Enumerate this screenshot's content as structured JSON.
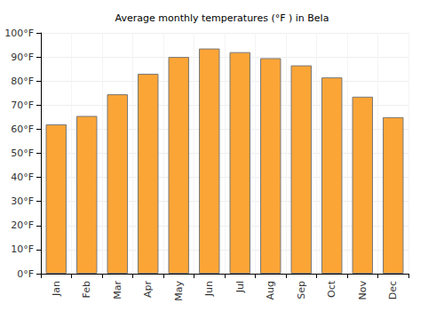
{
  "chart_data": {
    "type": "bar",
    "title": "Average monthly temperatures (°F ) in Bela",
    "categories": [
      "Jan",
      "Feb",
      "Mar",
      "Apr",
      "May",
      "Jun",
      "Jul",
      "Aug",
      "Sep",
      "Oct",
      "Nov",
      "Dec"
    ],
    "values": [
      62,
      65.5,
      74.5,
      83,
      90,
      93.5,
      92,
      89.5,
      86.5,
      81.5,
      73.5,
      65
    ],
    "color": "#fca537",
    "ylim": [
      0,
      100
    ],
    "yticks": [
      {
        "value": 0,
        "label": "0°F"
      },
      {
        "value": 10,
        "label": "10°F"
      },
      {
        "value": 20,
        "label": "20°F"
      },
      {
        "value": 30,
        "label": "30°F"
      },
      {
        "value": 40,
        "label": "40°F"
      },
      {
        "value": 50,
        "label": "50°F"
      },
      {
        "value": 60,
        "label": "60°F"
      },
      {
        "value": 70,
        "label": "70°F"
      },
      {
        "value": 80,
        "label": "80°F"
      },
      {
        "value": 90,
        "label": "90°F"
      },
      {
        "value": 100,
        "label": "100°F"
      }
    ],
    "grid": true
  }
}
